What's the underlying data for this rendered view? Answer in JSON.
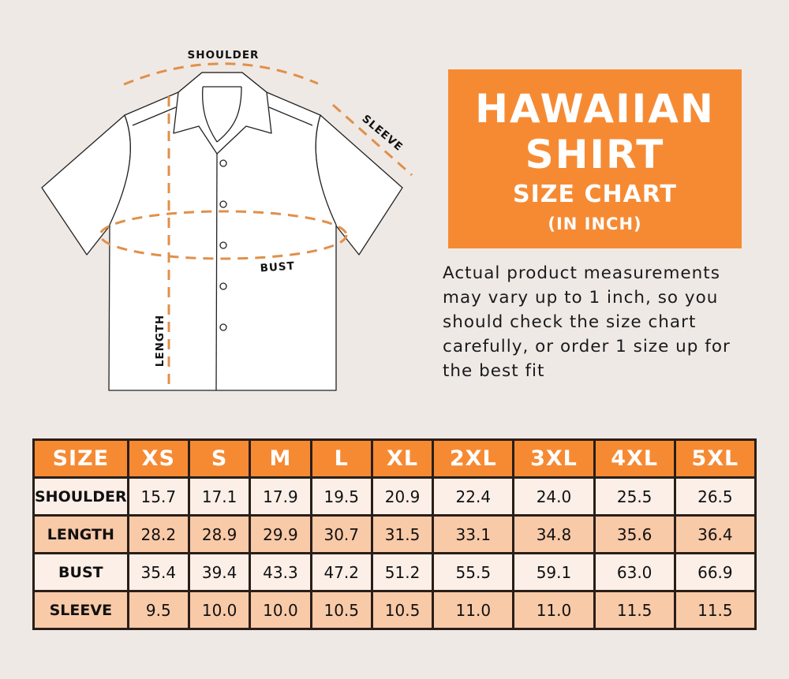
{
  "diagram_labels": {
    "shoulder": "SHOULDER",
    "sleeve": "SLEEVE",
    "bust": "BUST",
    "length": "LENGTH"
  },
  "title": {
    "line1": "HAWAIIAN",
    "line2": "SHIRT",
    "line3": "SIZE CHART",
    "line4": "(IN INCH)"
  },
  "note_lines": [
    "Actual product measurements",
    "may vary up to 1 inch, so you",
    "should check the size chart",
    "carefully, or order 1 size up for",
    "the best fit"
  ],
  "colors": {
    "accent": "#f68a33",
    "dash": "#e0904a",
    "row_light": "#fcefe8",
    "row_dark": "#f9caa8",
    "border": "#2a1e18"
  },
  "table": {
    "headers": [
      "SIZE",
      "XS",
      "S",
      "M",
      "L",
      "XL",
      "2XL",
      "3XL",
      "4XL",
      "5XL"
    ],
    "rows": [
      {
        "label": "SHOULDER",
        "values": [
          "15.7",
          "17.1",
          "17.9",
          "19.5",
          "20.9",
          "22.4",
          "24.0",
          "25.5",
          "26.5"
        ]
      },
      {
        "label": "LENGTH",
        "values": [
          "28.2",
          "28.9",
          "29.9",
          "30.7",
          "31.5",
          "33.1",
          "34.8",
          "35.6",
          "36.4"
        ]
      },
      {
        "label": "BUST",
        "values": [
          "35.4",
          "39.4",
          "43.3",
          "47.2",
          "51.2",
          "55.5",
          "59.1",
          "63.0",
          "66.9"
        ]
      },
      {
        "label": "SLEEVE",
        "values": [
          "9.5",
          "10.0",
          "10.0",
          "10.5",
          "10.5",
          "11.0",
          "11.0",
          "11.5",
          "11.5"
        ]
      }
    ]
  }
}
